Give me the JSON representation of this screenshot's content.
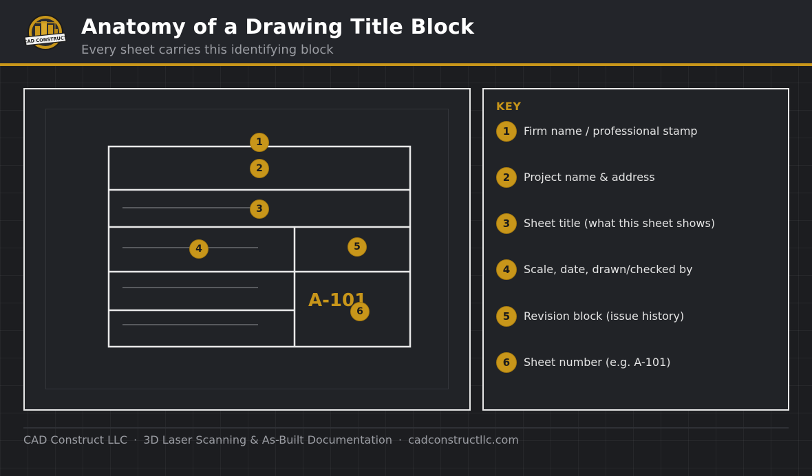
{
  "header": {
    "logo_text": "CAD CONSTRUCT",
    "title": "Anatomy of a Drawing Title Block",
    "subtitle": "Every sheet carries this identifying block"
  },
  "diagram": {
    "callouts": [
      "1",
      "2",
      "3",
      "4",
      "5",
      "6"
    ],
    "sheet_number": "A-101"
  },
  "key": {
    "title": "KEY",
    "items": [
      {
        "num": "1",
        "text": "Firm name / professional stamp"
      },
      {
        "num": "2",
        "text": "Project name & address"
      },
      {
        "num": "3",
        "text": "Sheet title (what this sheet shows)"
      },
      {
        "num": "4",
        "text": "Scale, date, drawn/checked by"
      },
      {
        "num": "5",
        "text": "Revision block (issue history)"
      },
      {
        "num": "6",
        "text": "Sheet number (e.g. A-101)"
      }
    ]
  },
  "footer": {
    "company": "CAD Construct LLC",
    "service": "3D Laser Scanning & As-Built Documentation",
    "website": "cadconstructllc.com",
    "separator": "·"
  },
  "colors": {
    "accent": "#c8961a",
    "background": "#1c1d20",
    "panel": "#212327",
    "header": "#23252a",
    "line": "#e9e9e9"
  }
}
